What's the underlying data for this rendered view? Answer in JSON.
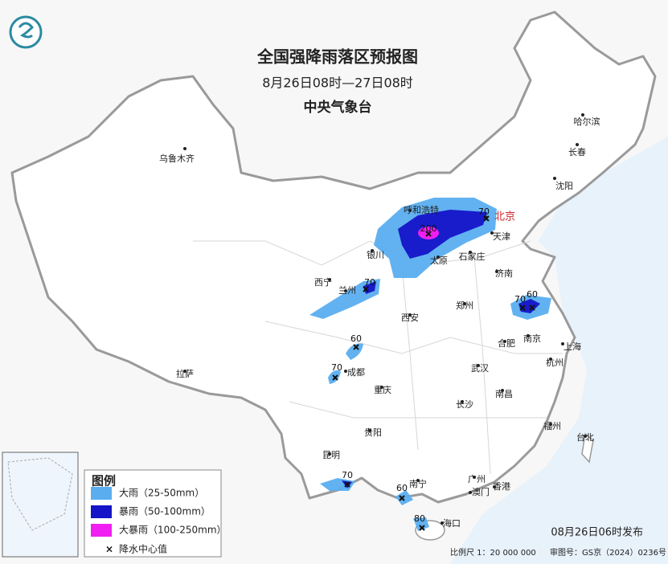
{
  "header": {
    "title": "全国强降雨落区预报图",
    "subtitle": "8月26日08时—27日08时",
    "issuer": "中央气象台"
  },
  "cities": [
    {
      "name": "乌鲁木齐"
    },
    {
      "name": "哈尔滨"
    },
    {
      "name": "长春"
    },
    {
      "name": "沈阳"
    },
    {
      "name": "北京",
      "color": "#d0262a"
    },
    {
      "name": "天津"
    },
    {
      "name": "石家庄"
    },
    {
      "name": "太原"
    },
    {
      "name": "银川"
    },
    {
      "name": "呼和浩特"
    },
    {
      "name": "西宁"
    },
    {
      "name": "兰州"
    },
    {
      "name": "济南"
    },
    {
      "name": "郑州"
    },
    {
      "name": "西安"
    },
    {
      "name": "合肥"
    },
    {
      "name": "南京"
    },
    {
      "name": "上海"
    },
    {
      "name": "杭州"
    },
    {
      "name": "武汉"
    },
    {
      "name": "成都"
    },
    {
      "name": "重庆"
    },
    {
      "name": "拉萨"
    },
    {
      "name": "长沙"
    },
    {
      "name": "南昌"
    },
    {
      "name": "贵阳"
    },
    {
      "name": "福州"
    },
    {
      "name": "台北"
    },
    {
      "name": "昆明"
    },
    {
      "name": "南宁"
    },
    {
      "name": "广州"
    },
    {
      "name": "澳门"
    },
    {
      "name": "香港"
    },
    {
      "name": "海口"
    }
  ],
  "rain_centers": [
    {
      "value": 200
    },
    {
      "value": 70
    },
    {
      "value": 70
    },
    {
      "value": 70
    },
    {
      "value": 60
    },
    {
      "value": 60
    },
    {
      "value": 70
    },
    {
      "value": 70
    },
    {
      "value": 60
    },
    {
      "value": 80
    }
  ],
  "legend": {
    "title": "图例",
    "items": [
      {
        "label": "大雨（25-50mm）",
        "color": "#5aaef0"
      },
      {
        "label": "暴雨（50-100mm）",
        "color": "#1414c8"
      },
      {
        "label": "大暴雨（100-250mm）",
        "color": "#f01ef0"
      }
    ],
    "center_label": "降水中心值"
  },
  "footer": {
    "issued": "08月26日06时发布",
    "scale": "比例尺 1：20 000 000",
    "map_number": "审图号：GS京（2024）0236号"
  }
}
